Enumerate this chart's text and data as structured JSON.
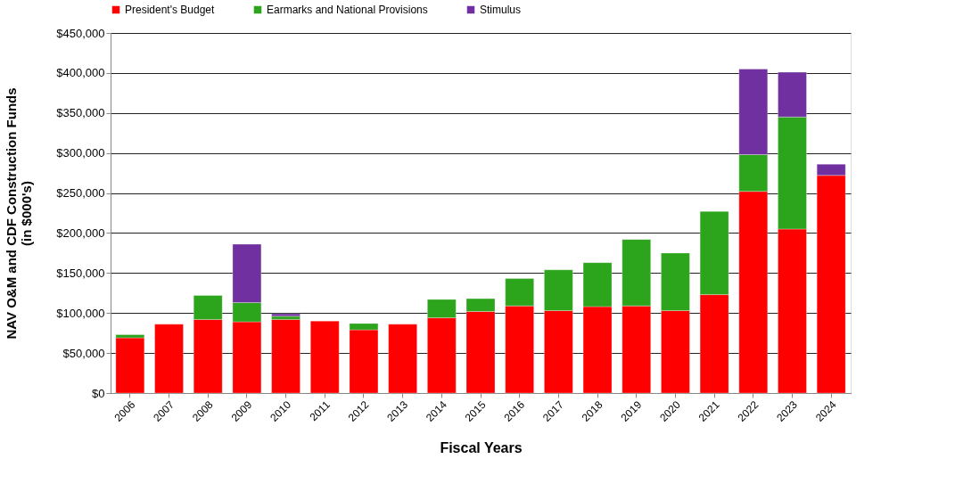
{
  "chart_data": {
    "type": "bar",
    "stacked": true,
    "xlabel": "Fiscal Years",
    "ylabel": "NAV O&M and CDF Construction Funds\n(in $000's)",
    "categories": [
      "2006",
      "2007",
      "2008",
      "2009",
      "2010",
      "2011",
      "2012",
      "2013",
      "2014",
      "2015",
      "2016",
      "2017",
      "2018",
      "2019",
      "2020",
      "2021",
      "2022",
      "2023",
      "2024"
    ],
    "series": [
      {
        "name": "President's Budget",
        "color": "#ff0000",
        "values": [
          69000,
          86000,
          92000,
          89000,
          92000,
          90000,
          79000,
          86000,
          94000,
          102000,
          109000,
          103000,
          108000,
          109000,
          103000,
          123000,
          252000,
          205000,
          272000
        ]
      },
      {
        "name": "Earmarks and National Provisions",
        "color": "#2ca41c",
        "values": [
          4000,
          null,
          30000,
          24000,
          4000,
          null,
          8000,
          null,
          23000,
          16000,
          34000,
          51000,
          55000,
          83000,
          72000,
          104000,
          46000,
          140000,
          null
        ]
      },
      {
        "name": "Stimulus",
        "color": "#7030a0",
        "values": [
          null,
          null,
          null,
          73000,
          3000,
          null,
          null,
          null,
          null,
          null,
          null,
          null,
          null,
          null,
          null,
          null,
          107000,
          56000,
          14000
        ]
      }
    ],
    "ylim": [
      0,
      450000
    ],
    "yticks": [
      {
        "value": 0,
        "label": "$0"
      },
      {
        "value": 50000,
        "label": "$50,000"
      },
      {
        "value": 100000,
        "label": "$100,000"
      },
      {
        "value": 150000,
        "label": "$150,000"
      },
      {
        "value": 200000,
        "label": "$200,000"
      },
      {
        "value": 250000,
        "label": "$250,000"
      },
      {
        "value": 300000,
        "label": "$300,000"
      },
      {
        "value": 350000,
        "label": "$350,000"
      },
      {
        "value": 400000,
        "label": "$400,000"
      },
      {
        "value": 450000,
        "label": "$450,000"
      }
    ],
    "grid": "y",
    "legend": "top"
  }
}
